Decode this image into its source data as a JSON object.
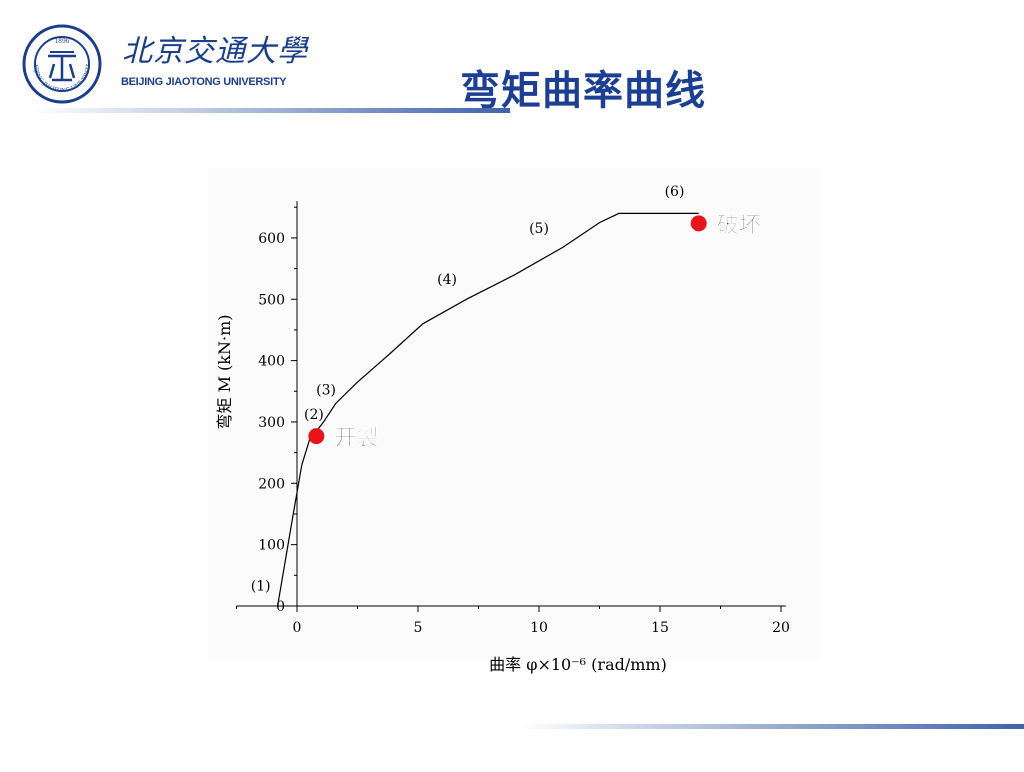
{
  "header": {
    "university_cn": "北京交通大學",
    "university_en": "BEIJING JIAOTONG UNIVERSITY",
    "logo": {
      "ring_text": "BEIJING JIAOTONG UNIVERSITY",
      "year": "1896"
    },
    "title": "弯矩曲率曲线"
  },
  "colors": {
    "brand_blue": "#1c3f93",
    "marker_red": "#e8141b",
    "curve": "#000000"
  },
  "chart_data": {
    "type": "line",
    "title": "",
    "xlabel": "曲率 φ×10⁻⁶ (rad/mm)",
    "ylabel": "弯矩 M (kN·m)",
    "xlim": [
      -2.5,
      21
    ],
    "ylim": [
      0,
      660
    ],
    "xticks": [
      0,
      5,
      10,
      15,
      20
    ],
    "yticks": [
      0,
      100,
      200,
      300,
      400,
      500,
      600
    ],
    "series": [
      {
        "x": [
          -0.8,
          -0.2,
          0.2,
          0.55,
          0.8,
          1.1,
          1.6,
          2.5,
          3.8,
          5.2,
          7.0,
          9.0,
          11.0,
          12.5,
          13.3,
          14.5,
          16.6
        ],
        "y": [
          0,
          140,
          230,
          275,
          285,
          300,
          330,
          365,
          410,
          460,
          500,
          540,
          585,
          625,
          640,
          640,
          640
        ]
      }
    ],
    "stage_labels": [
      {
        "text": "(1)",
        "x": -1.5,
        "y": 25
      },
      {
        "text": "(2)",
        "x": 0.7,
        "y": 305
      },
      {
        "text": "(3)",
        "x": 1.2,
        "y": 345
      },
      {
        "text": "(4)",
        "x": 6.2,
        "y": 525
      },
      {
        "text": "(5)",
        "x": 10.0,
        "y": 608
      },
      {
        "text": "(6)",
        "x": 15.6,
        "y": 668
      }
    ],
    "annotations": [
      {
        "text": "开裂",
        "x": 0.8,
        "y": 285
      },
      {
        "text": "破坏",
        "x": 16.6,
        "y": 640
      }
    ]
  }
}
